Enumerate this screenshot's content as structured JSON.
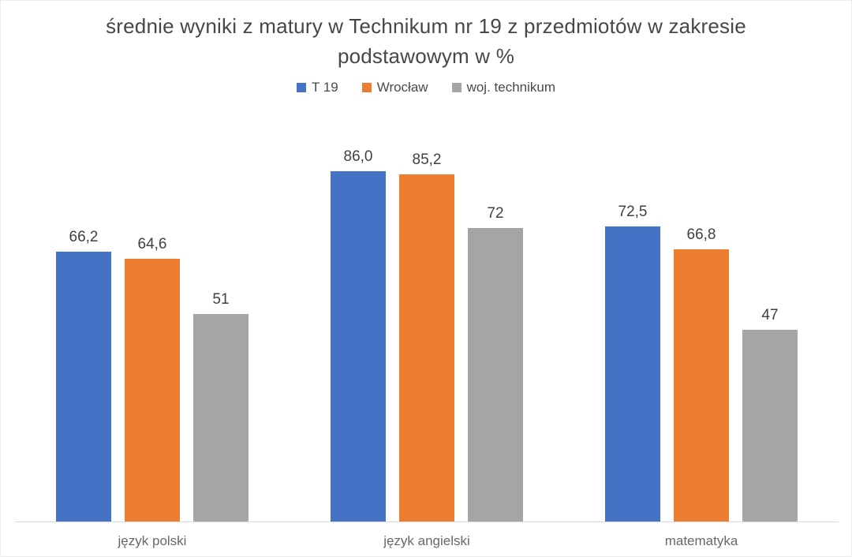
{
  "chart_data": {
    "type": "bar",
    "title": "średnie wyniki z matury w Technikum nr 19  z przedmiotów w zakresie podstawowym w %",
    "categories": [
      "język polski",
      "język angielski",
      "matematyka"
    ],
    "series": [
      {
        "name": "T 19",
        "color": "#4472C4",
        "values": [
          66.2,
          86.0,
          72.5
        ],
        "labels": [
          "66,2",
          "86,0",
          "72,5"
        ]
      },
      {
        "name": "Wrocław",
        "color": "#ED7D31",
        "values": [
          64.6,
          85.2,
          66.8
        ],
        "labels": [
          "64,6",
          "85,2",
          "66,8"
        ]
      },
      {
        "name": "woj. technikum",
        "color": "#A5A5A5",
        "values": [
          51,
          72,
          47
        ],
        "labels": [
          "51",
          "72",
          "47"
        ]
      }
    ],
    "xlabel": "",
    "ylabel": "",
    "ylim": [
      0,
      100
    ],
    "grid": false,
    "legend_position": "top",
    "axis_line_color": "#d9d9d9",
    "value_label_color": "#404040",
    "category_label_color": "#686868",
    "title_color": "#474747"
  }
}
